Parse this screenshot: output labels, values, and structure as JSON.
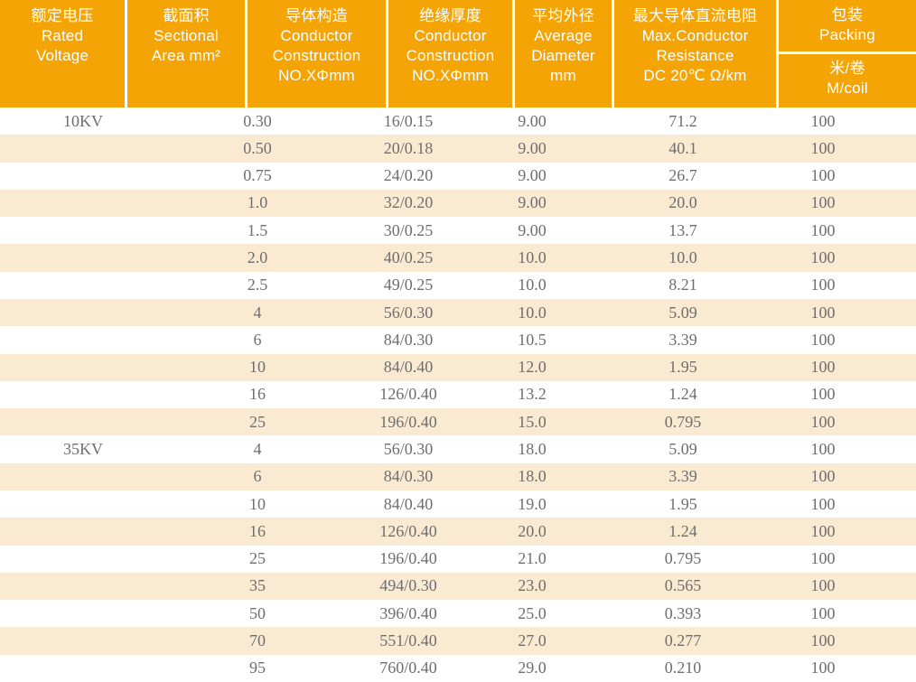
{
  "colors": {
    "header_bg": "#F5A406",
    "header_text": "#FFFFFF",
    "separator": "#FFFFFF",
    "stripe_bg": "#FBEAD2",
    "row_bg": "#FFFFFF",
    "row_text": "#6E6E6E"
  },
  "header": {
    "columns": [
      {
        "line1": "额定电压",
        "line2": "Rated",
        "line3": "Voltage"
      },
      {
        "line1": "截面积",
        "line2": "Sectional",
        "line3": "Area mm²"
      },
      {
        "line1": "导体构造",
        "line2": "Conductor",
        "line3": "Construction",
        "line4": "NO.XΦmm"
      },
      {
        "line1": "绝缘厚度",
        "line2": "Conductor",
        "line3": "Construction",
        "line4": "NO.XΦmm"
      },
      {
        "line1": "平均外径",
        "line2": "Average",
        "line3": "Diameter",
        "line4": "mm"
      },
      {
        "line1": "最大导体直流电阻",
        "line2": "Max.Conductor",
        "line3": "Resistance",
        "line4": "DC 20℃ Ω/km"
      },
      {
        "line1": "包装",
        "line2": "Packing",
        "sub1": "米/卷",
        "sub2": "M/coil"
      }
    ]
  },
  "rows": [
    {
      "voltage": "10KV",
      "area": "0.30",
      "construction": "16/0.15",
      "diameter": "9.00",
      "resistance": "71.2",
      "packing": "100"
    },
    {
      "voltage": "",
      "area": "0.50",
      "construction": "20/0.18",
      "diameter": "9.00",
      "resistance": "40.1",
      "packing": "100"
    },
    {
      "voltage": "",
      "area": "0.75",
      "construction": "24/0.20",
      "diameter": "9.00",
      "resistance": "26.7",
      "packing": "100"
    },
    {
      "voltage": "",
      "area": "1.0",
      "construction": "32/0.20",
      "diameter": "9.00",
      "resistance": "20.0",
      "packing": "100"
    },
    {
      "voltage": "",
      "area": "1.5",
      "construction": "30/0.25",
      "diameter": "9.00",
      "resistance": "13.7",
      "packing": "100"
    },
    {
      "voltage": "",
      "area": "2.0",
      "construction": "40/0.25",
      "diameter": "10.0",
      "resistance": "10.0",
      "packing": "100"
    },
    {
      "voltage": "",
      "area": "2.5",
      "construction": "49/0.25",
      "diameter": "10.0",
      "resistance": "8.21",
      "packing": "100"
    },
    {
      "voltage": "",
      "area": "4",
      "construction": "56/0.30",
      "diameter": "10.0",
      "resistance": "5.09",
      "packing": "100"
    },
    {
      "voltage": "",
      "area": "6",
      "construction": "84/0.30",
      "diameter": "10.5",
      "resistance": "3.39",
      "packing": "100"
    },
    {
      "voltage": "",
      "area": "10",
      "construction": "84/0.40",
      "diameter": "12.0",
      "resistance": "1.95",
      "packing": "100"
    },
    {
      "voltage": "",
      "area": "16",
      "construction": "126/0.40",
      "diameter": "13.2",
      "resistance": "1.24",
      "packing": "100"
    },
    {
      "voltage": "",
      "area": "25",
      "construction": "196/0.40",
      "diameter": "15.0",
      "resistance": "0.795",
      "packing": "100"
    },
    {
      "voltage": "35KV",
      "area": "4",
      "construction": "56/0.30",
      "diameter": "18.0",
      "resistance": "5.09",
      "packing": "100"
    },
    {
      "voltage": "",
      "area": "6",
      "construction": "84/0.30",
      "diameter": "18.0",
      "resistance": "3.39",
      "packing": "100"
    },
    {
      "voltage": "",
      "area": "10",
      "construction": "84/0.40",
      "diameter": "19.0",
      "resistance": "1.95",
      "packing": "100"
    },
    {
      "voltage": "",
      "area": "16",
      "construction": "126/0.40",
      "diameter": "20.0",
      "resistance": "1.24",
      "packing": "100"
    },
    {
      "voltage": "",
      "area": "25",
      "construction": "196/0.40",
      "diameter": "21.0",
      "resistance": "0.795",
      "packing": "100"
    },
    {
      "voltage": "",
      "area": "35",
      "construction": "494/0.30",
      "diameter": "23.0",
      "resistance": "0.565",
      "packing": "100"
    },
    {
      "voltage": "",
      "area": "50",
      "construction": "396/0.40",
      "diameter": "25.0",
      "resistance": "0.393",
      "packing": "100"
    },
    {
      "voltage": "",
      "area": "70",
      "construction": "551/0.40",
      "diameter": "27.0",
      "resistance": "0.277",
      "packing": "100"
    },
    {
      "voltage": "",
      "area": "95",
      "construction": "760/0.40",
      "diameter": "29.0",
      "resistance": "0.210",
      "packing": "100"
    }
  ]
}
